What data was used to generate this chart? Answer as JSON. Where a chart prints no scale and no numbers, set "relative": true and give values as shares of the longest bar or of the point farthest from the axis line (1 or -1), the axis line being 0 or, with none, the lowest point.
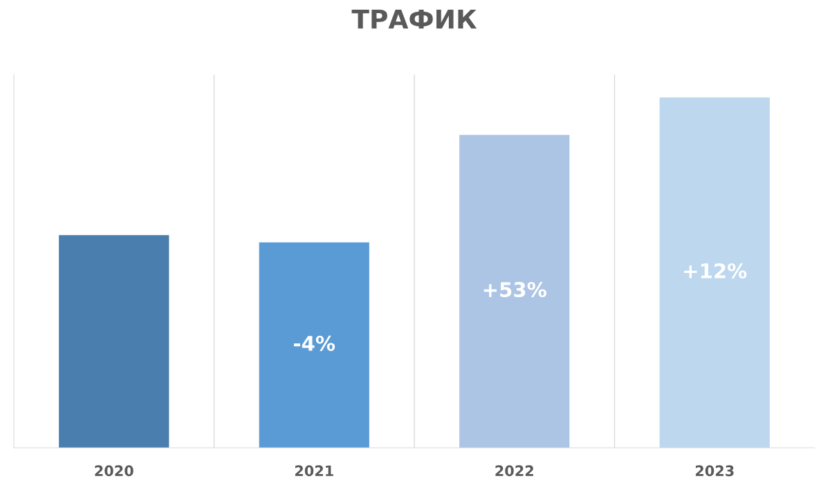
{
  "chart_data": {
    "type": "bar",
    "title": "ТРАФИК",
    "categories": [
      "2020",
      "2021",
      "2022",
      "2023"
    ],
    "values": [
      0.607,
      0.586,
      0.893,
      1
    ],
    "colors": [
      "#4a7eae",
      "#5b9bd5",
      "#adc5e5",
      "#bdd7ee"
    ],
    "annotations": [
      "-4%",
      "+53%",
      "+12%"
    ],
    "relative": true,
    "grid": "x"
  }
}
